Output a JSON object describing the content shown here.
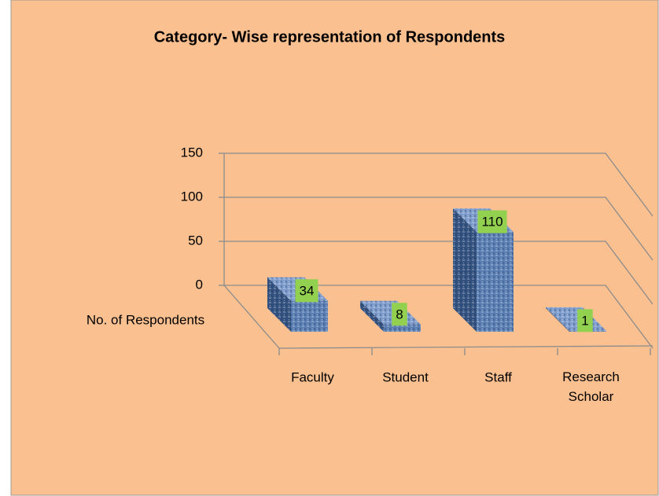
{
  "chart_data": {
    "type": "bar3d",
    "title": "Category- Wise representation of Respondents",
    "categories": [
      "Faculty",
      "Student",
      "Staff",
      "Research Scholar"
    ],
    "series": [
      {
        "name": "No. of Respondents",
        "color": "#5b7fb3",
        "values": [
          34,
          8,
          110,
          1
        ]
      }
    ],
    "ylim": [
      0,
      150
    ],
    "yticks": [
      0,
      50,
      100,
      150
    ],
    "grid": true,
    "label_color": "#92d050",
    "background": "#fac090"
  }
}
